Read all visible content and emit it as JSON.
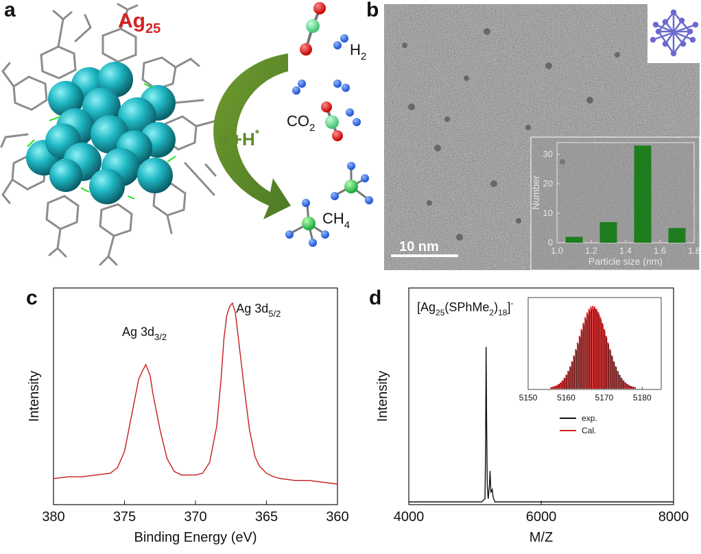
{
  "figure": {
    "panel_labels": [
      "a",
      "b",
      "c",
      "d"
    ]
  },
  "panel_a": {
    "cluster_label": "Ag",
    "cluster_subscript": "25",
    "arrow_label": "e",
    "arrow_label_sup1": "-",
    "arrow_label_mid": "+H",
    "arrow_label_sup2": "*",
    "species": {
      "h2": "H",
      "h2_sub": "2",
      "co2": "CO",
      "co2_sub": "2",
      "ch4": "CH",
      "ch4_sub": "4"
    },
    "colors": {
      "cluster_label": "#d42020",
      "arrow": "#5e8a2a",
      "silver": "#1fb8c4",
      "ligand": "#8c8c8c"
    }
  },
  "panel_b": {
    "scale_bar": "10 nm",
    "inset_histogram": {
      "type": "bar",
      "x": [
        1.1,
        1.3,
        1.5,
        1.7
      ],
      "values": [
        2,
        7,
        33,
        5
      ],
      "xlim": [
        1.0,
        1.8
      ],
      "ylim": [
        0,
        34
      ],
      "xticks": [
        "1.0",
        "1.2",
        "1.4",
        "1.6",
        "1.8"
      ],
      "yticks": [
        "0",
        "10",
        "20",
        "30"
      ],
      "xlabel": "Particle size (nm)",
      "ylabel": "Number",
      "bar_color": "#1e7d1e"
    }
  },
  "chart_data": [
    {
      "type": "line",
      "panel": "c",
      "xlabel": "Binding Energy (eV)",
      "ylabel": "Intensity",
      "xlim": [
        380,
        360
      ],
      "xticks": [
        "380",
        "375",
        "370",
        "365",
        "360"
      ],
      "annotations": [
        {
          "text": "Ag 3d",
          "sub": "3/2",
          "x": 373.5
        },
        {
          "text": "Ag 3d",
          "sub": "5/2",
          "x": 367.5
        }
      ],
      "series": [
        {
          "color": "#c41a1a",
          "x": [
            380,
            379,
            378,
            377,
            376,
            375.5,
            375,
            374.5,
            374,
            373.7,
            373.5,
            373.2,
            373,
            372.5,
            372,
            371.5,
            371,
            370.5,
            370,
            369.5,
            369,
            368.5,
            368.2,
            368,
            367.8,
            367.6,
            367.4,
            367.2,
            367,
            366.6,
            366.2,
            365.8,
            365.5,
            365,
            364.5,
            364,
            363,
            362,
            361,
            360
          ],
          "y": [
            0.03,
            0.04,
            0.04,
            0.05,
            0.06,
            0.09,
            0.18,
            0.38,
            0.58,
            0.63,
            0.66,
            0.6,
            0.5,
            0.3,
            0.14,
            0.07,
            0.05,
            0.05,
            0.05,
            0.06,
            0.12,
            0.32,
            0.58,
            0.8,
            0.93,
            0.98,
            1.0,
            0.95,
            0.82,
            0.55,
            0.3,
            0.15,
            0.1,
            0.06,
            0.04,
            0.03,
            0.02,
            0.02,
            0.01,
            0.0
          ]
        }
      ]
    },
    {
      "type": "line",
      "panel": "d",
      "xlabel": "M/Z",
      "ylabel": "Intensity",
      "xlim": [
        4000,
        8000
      ],
      "xticks": [
        "4000",
        "6000",
        "8000"
      ],
      "formula_parts": [
        "[Ag",
        "25",
        "(SPhMe",
        "2",
        ")",
        "18",
        "]",
        "-"
      ],
      "series": [
        {
          "color": "#111111",
          "x": [
            4000,
            5100,
            5150,
            5160,
            5168,
            5175,
            5185,
            5200,
            5220,
            5228,
            5240,
            5260,
            5275,
            5300,
            5400,
            6000,
            8000
          ],
          "y": [
            0.0,
            0.0,
            0.02,
            0.3,
            1.0,
            0.55,
            0.1,
            0.02,
            0.12,
            0.2,
            0.06,
            0.08,
            0.03,
            0.0,
            0.0,
            0.0,
            0.0
          ]
        }
      ],
      "inset": {
        "xlim": [
          5150,
          5185
        ],
        "xticks": [
          "5150",
          "5160",
          "5170",
          "5180"
        ],
        "legend": [
          {
            "name": "exp.",
            "color": "#111111"
          },
          {
            "name": "Cal.",
            "color": "#d42020"
          }
        ],
        "envelope_center": 5167,
        "envelope_width": 5.2
      }
    }
  ]
}
